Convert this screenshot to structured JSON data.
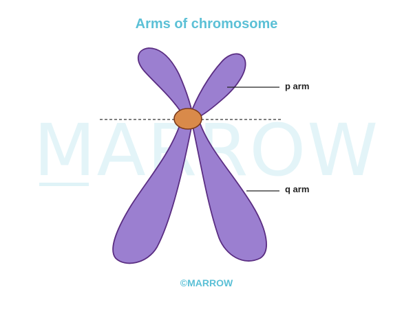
{
  "diagram": {
    "title": "Arms of chromosome",
    "labels": {
      "p_arm": "p arm",
      "q_arm": "q arm"
    },
    "watermark": "MARROW",
    "footer": "©MARROW",
    "colors": {
      "title": "#5bc0d6",
      "chromatid_fill": "#9b7fd0",
      "chromatid_outline": "#5a2d82",
      "centromere_fill": "#d98a4a",
      "centromere_outline": "#7a3a1a",
      "label_text": "#222222",
      "watermark": "#dff3f7"
    }
  }
}
